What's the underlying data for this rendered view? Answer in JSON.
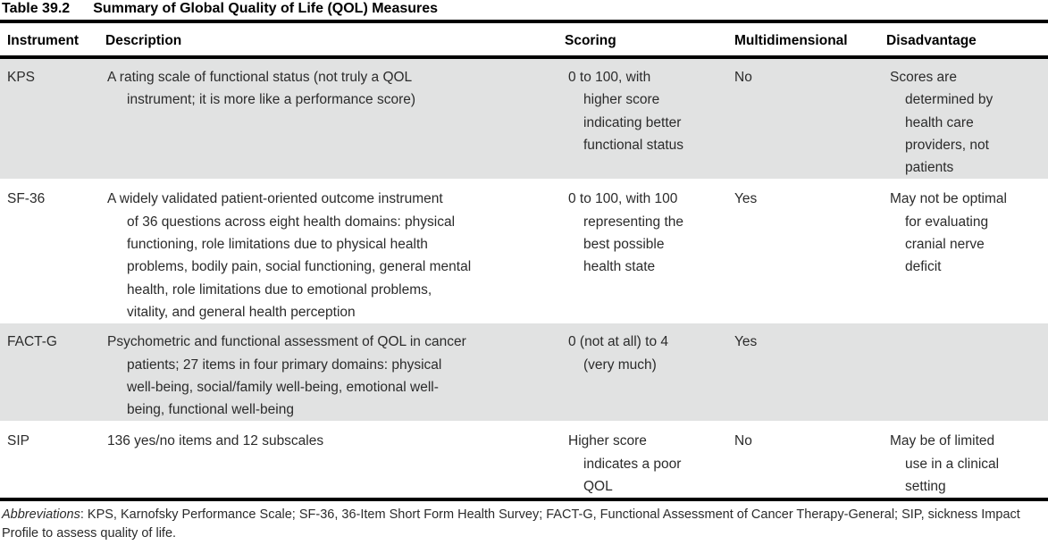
{
  "caption": {
    "number": "Table 39.2",
    "title": "Summary of Global Quality of Life (QOL) Measures"
  },
  "table": {
    "headers": [
      "Instrument",
      "Description",
      "Scoring",
      "Multidimensional",
      "Disadvantage"
    ],
    "rows": [
      {
        "instrument": "KPS",
        "description": "A rating scale of functional status (not truly a QOL\ninstrument; it is more like a performance score)",
        "scoring": "0 to 100, with\nhigher score\nindicating better\nfunctional status",
        "multidimensional": "No",
        "disadvantage": "Scores are\ndetermined by\nhealth care\nproviders, not\npatients"
      },
      {
        "instrument": "SF-36",
        "description": "A widely validated patient-oriented outcome instrument\nof 36 questions across eight health domains: physical\nfunctioning, role limitations due to physical health\nproblems, bodily pain, social functioning, general mental\nhealth, role limitations due to emotional problems,\nvitality, and general health perception",
        "scoring": "0 to 100, with 100\nrepresenting the\nbest possible\nhealth state",
        "multidimensional": "Yes",
        "disadvantage": "May not be optimal\nfor evaluating\ncranial nerve\ndeficit"
      },
      {
        "instrument": "FACT-G",
        "description": "Psychometric and functional assessment of QOL in cancer\npatients; 27 items in four primary domains: physical\nwell-being, social/family well-being, emotional well-\nbeing, functional well-being",
        "scoring": "0 (not at all) to 4\n(very much)",
        "multidimensional": "Yes",
        "disadvantage": ""
      },
      {
        "instrument": "SIP",
        "description": "136 yes/no items and 12 subscales",
        "scoring": "Higher score\nindicates a poor\nQOL",
        "multidimensional": "No",
        "disadvantage": "May be of limited\nuse in a clinical\nsetting"
      }
    ]
  },
  "footnote": {
    "label": "Abbreviations",
    "text": ": KPS, Karnofsky Performance Scale; SF-36, 36-Item Short Form Health Survey; FACT-G, Functional Assessment of Cancer Therapy-General; SIP, sickness Impact Profile to assess quality of life."
  }
}
